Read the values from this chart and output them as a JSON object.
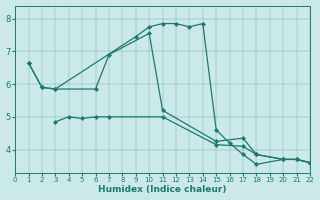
{
  "xlabel": "Humidex (Indice chaleur)",
  "xlim": [
    0,
    22
  ],
  "ylim": [
    3.3,
    8.4
  ],
  "xticks": [
    0,
    1,
    2,
    3,
    4,
    5,
    6,
    7,
    8,
    9,
    10,
    11,
    12,
    13,
    14,
    15,
    16,
    17,
    18,
    19,
    20,
    21,
    22
  ],
  "yticks": [
    4,
    5,
    6,
    7,
    8
  ],
  "bg_color": "#cce9e9",
  "line_color": "#1a7a6e",
  "lines": [
    {
      "x": [
        1,
        2,
        3,
        9,
        10,
        11,
        12,
        13,
        14,
        15,
        16,
        17,
        18,
        20,
        21,
        22
      ],
      "y": [
        6.65,
        5.9,
        5.85,
        7.45,
        7.75,
        7.85,
        7.85,
        7.75,
        7.85,
        4.6,
        4.2,
        3.85,
        3.55,
        3.7,
        3.7,
        3.6
      ]
    },
    {
      "x": [
        1,
        2,
        3,
        6,
        7,
        10,
        11,
        15,
        17,
        18,
        20,
        21,
        22
      ],
      "y": [
        6.65,
        5.9,
        5.85,
        5.85,
        6.9,
        7.55,
        5.2,
        4.25,
        4.35,
        3.85,
        3.7,
        3.7,
        3.6
      ]
    },
    {
      "x": [
        3,
        4,
        5,
        6,
        7,
        11,
        15,
        17,
        18,
        20,
        21,
        22
      ],
      "y": [
        4.85,
        5.0,
        4.95,
        5.0,
        5.0,
        5.0,
        4.15,
        4.1,
        3.85,
        3.7,
        3.7,
        3.6
      ]
    }
  ]
}
